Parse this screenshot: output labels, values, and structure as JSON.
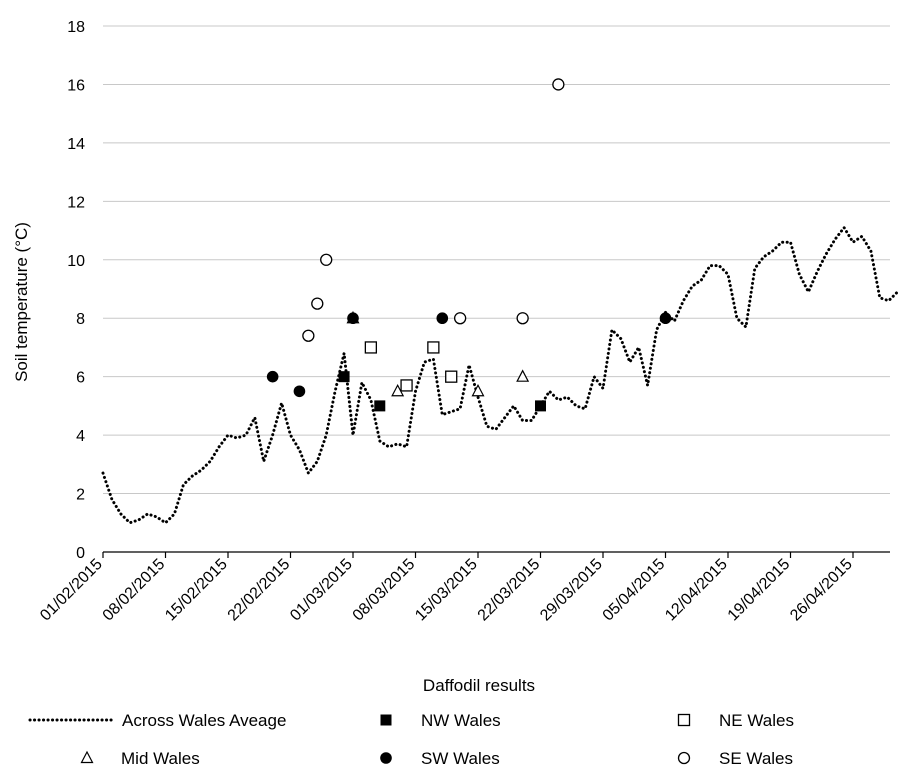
{
  "chart_data": {
    "type": "scatter",
    "title": "",
    "xlabel": "Daffodil results",
    "ylabel": "Soil temperature (°C)",
    "ylim": [
      0,
      18
    ],
    "yticks": [
      "0",
      "2",
      "4",
      "6",
      "8",
      "10",
      "12",
      "14",
      "16",
      "18"
    ],
    "xlim": [
      "2015-02-01",
      "2015-05-01"
    ],
    "xticks": [
      "01/02/2015",
      "08/02/2015",
      "15/02/2015",
      "22/02/2015",
      "01/03/2015",
      "08/03/2015",
      "15/03/2015",
      "22/03/2015",
      "29/03/2015",
      "05/04/2015",
      "12/04/2015",
      "19/04/2015",
      "26/04/2015"
    ],
    "grid": "horizontal",
    "legend": "bottom",
    "series": [
      {
        "name": "Across Wales Aveage",
        "style": "dotted-line",
        "color": "#000000",
        "points": [
          [
            "2015-02-01",
            2.7
          ],
          [
            "2015-02-02",
            1.8
          ],
          [
            "2015-02-03",
            1.3
          ],
          [
            "2015-02-04",
            1.0
          ],
          [
            "2015-02-05",
            1.1
          ],
          [
            "2015-02-06",
            1.3
          ],
          [
            "2015-02-07",
            1.2
          ],
          [
            "2015-02-08",
            1.0
          ],
          [
            "2015-02-09",
            1.3
          ],
          [
            "2015-02-10",
            2.3
          ],
          [
            "2015-02-11",
            2.6
          ],
          [
            "2015-02-12",
            2.8
          ],
          [
            "2015-02-13",
            3.1
          ],
          [
            "2015-02-14",
            3.6
          ],
          [
            "2015-02-15",
            4.0
          ],
          [
            "2015-02-16",
            3.9
          ],
          [
            "2015-02-17",
            4.0
          ],
          [
            "2015-02-18",
            4.6
          ],
          [
            "2015-02-19",
            3.1
          ],
          [
            "2015-02-20",
            4.0
          ],
          [
            "2015-02-21",
            5.1
          ],
          [
            "2015-02-22",
            4.0
          ],
          [
            "2015-02-23",
            3.5
          ],
          [
            "2015-02-24",
            2.7
          ],
          [
            "2015-02-25",
            3.1
          ],
          [
            "2015-02-26",
            4.0
          ],
          [
            "2015-02-27",
            5.5
          ],
          [
            "2015-02-28",
            6.8
          ],
          [
            "2015-03-01",
            4.0
          ],
          [
            "2015-03-02",
            5.8
          ],
          [
            "2015-03-03",
            5.2
          ],
          [
            "2015-03-04",
            3.8
          ],
          [
            "2015-03-05",
            3.6
          ],
          [
            "2015-03-06",
            3.7
          ],
          [
            "2015-03-07",
            3.6
          ],
          [
            "2015-03-08",
            5.5
          ],
          [
            "2015-03-09",
            6.5
          ],
          [
            "2015-03-10",
            6.6
          ],
          [
            "2015-03-11",
            4.7
          ],
          [
            "2015-03-12",
            4.8
          ],
          [
            "2015-03-13",
            4.9
          ],
          [
            "2015-03-14",
            6.4
          ],
          [
            "2015-03-15",
            5.3
          ],
          [
            "2015-03-16",
            4.3
          ],
          [
            "2015-03-17",
            4.2
          ],
          [
            "2015-03-18",
            4.6
          ],
          [
            "2015-03-19",
            5.0
          ],
          [
            "2015-03-20",
            4.5
          ],
          [
            "2015-03-21",
            4.5
          ],
          [
            "2015-03-22",
            5.0
          ],
          [
            "2015-03-23",
            5.5
          ],
          [
            "2015-03-24",
            5.2
          ],
          [
            "2015-03-25",
            5.3
          ],
          [
            "2015-03-26",
            5.0
          ],
          [
            "2015-03-27",
            4.9
          ],
          [
            "2015-03-28",
            6.0
          ],
          [
            "2015-03-29",
            5.6
          ],
          [
            "2015-03-30",
            7.6
          ],
          [
            "2015-03-31",
            7.3
          ],
          [
            "2015-04-01",
            6.5
          ],
          [
            "2015-04-02",
            7.0
          ],
          [
            "2015-04-03",
            5.7
          ],
          [
            "2015-04-04",
            7.6
          ],
          [
            "2015-04-05",
            8.2
          ],
          [
            "2015-04-06",
            7.9
          ],
          [
            "2015-04-07",
            8.6
          ],
          [
            "2015-04-08",
            9.1
          ],
          [
            "2015-04-09",
            9.3
          ],
          [
            "2015-04-10",
            9.8
          ],
          [
            "2015-04-11",
            9.8
          ],
          [
            "2015-04-12",
            9.5
          ],
          [
            "2015-04-13",
            8.0
          ],
          [
            "2015-04-14",
            7.7
          ],
          [
            "2015-04-15",
            9.7
          ],
          [
            "2015-04-16",
            10.1
          ],
          [
            "2015-04-17",
            10.3
          ],
          [
            "2015-04-18",
            10.6
          ],
          [
            "2015-04-19",
            10.6
          ],
          [
            "2015-04-20",
            9.5
          ],
          [
            "2015-04-21",
            8.9
          ],
          [
            "2015-04-22",
            9.6
          ],
          [
            "2015-04-23",
            10.2
          ],
          [
            "2015-04-24",
            10.7
          ],
          [
            "2015-04-25",
            11.1
          ],
          [
            "2015-04-26",
            10.6
          ],
          [
            "2015-04-27",
            10.8
          ],
          [
            "2015-04-28",
            10.3
          ],
          [
            "2015-04-29",
            8.7
          ],
          [
            "2015-04-30",
            8.6
          ],
          [
            "2015-05-01",
            8.9
          ]
        ]
      },
      {
        "name": "NW Wales",
        "style": "filled-square",
        "color": "#000000",
        "points": [
          [
            "2015-02-28",
            6.0
          ],
          [
            "2015-03-04",
            5.0
          ],
          [
            "2015-03-22",
            5.0
          ]
        ]
      },
      {
        "name": "NE Wales",
        "style": "open-square",
        "color": "#000000",
        "points": [
          [
            "2015-03-03",
            7.0
          ],
          [
            "2015-03-07",
            5.7
          ],
          [
            "2015-03-10",
            7.0
          ],
          [
            "2015-03-12",
            6.0
          ]
        ]
      },
      {
        "name": "Mid Wales",
        "style": "open-triangle",
        "color": "#000000",
        "points": [
          [
            "2015-03-01",
            8.0
          ],
          [
            "2015-03-06",
            5.5
          ],
          [
            "2015-03-15",
            5.5
          ],
          [
            "2015-03-20",
            6.0
          ]
        ]
      },
      {
        "name": "SW Wales",
        "style": "filled-circle",
        "color": "#000000",
        "points": [
          [
            "2015-02-20",
            6.0
          ],
          [
            "2015-02-23",
            5.5
          ],
          [
            "2015-02-29",
            8.0
          ],
          [
            "2015-03-11",
            8.0
          ],
          [
            "2015-04-05",
            8.0
          ]
        ]
      },
      {
        "name": "SE Wales",
        "style": "open-circle",
        "color": "#000000",
        "points": [
          [
            "2015-02-24",
            7.4
          ],
          [
            "2015-02-25",
            8.5
          ],
          [
            "2015-02-26",
            10.0
          ],
          [
            "2015-03-13",
            8.0
          ],
          [
            "2015-03-20",
            8.0
          ],
          [
            "2015-03-24",
            16.0
          ]
        ]
      }
    ]
  }
}
